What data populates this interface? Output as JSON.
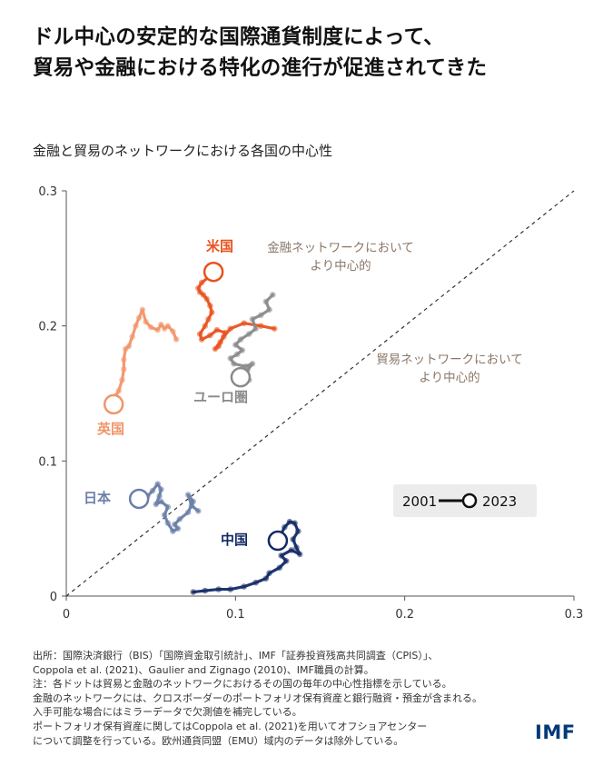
{
  "title_lines": [
    "ドル中心の安定的な国際通貨制度によって、",
    "貿易や金融における特化の進行が促進されてきた"
  ],
  "subtitle": "金融と貿易のネットワークにおける各国の中心性",
  "colors": {
    "us": "#e8521e",
    "euro": "#8a8a8a",
    "uk": "#f0956a",
    "japan": "#6a7ea8",
    "china": "#142a66",
    "diag_text": "#8a7768"
  },
  "chart_data": {
    "type": "scatter",
    "title": "金融と貿易のネットワークにおける各国の中心性",
    "xlabel": "",
    "ylabel": "",
    "xlim": [
      0,
      0.3
    ],
    "ylim": [
      0,
      0.3
    ],
    "x_ticks": [
      0,
      0.1,
      0.2,
      0.3
    ],
    "y_ticks": [
      0,
      0.1,
      0.2,
      0.3
    ],
    "x_tick_labels": [
      "0",
      "0.1",
      "0.2",
      "0.3"
    ],
    "y_tick_labels": [
      "0",
      "0.1",
      "0.2",
      "0.3"
    ],
    "grid": false,
    "diagonal_line": true,
    "legend": {
      "start": "2001",
      "end": "2023",
      "placement": "lower-right"
    },
    "annotations": [
      {
        "lines": [
          "金融ネットワークにおいて",
          "より中心的"
        ]
      },
      {
        "lines": [
          "貿易ネットワークにおいて",
          "より中心的"
        ]
      }
    ],
    "series": [
      {
        "name": "米国",
        "color_key": "us",
        "x": [
          0.123,
          0.115,
          0.105,
          0.097,
          0.093,
          0.09,
          0.088,
          0.091,
          0.094,
          0.089,
          0.085,
          0.08,
          0.079,
          0.082,
          0.084,
          0.086,
          0.085,
          0.083,
          0.081,
          0.079,
          0.078,
          0.08,
          0.084,
          0.087
        ],
        "y": [
          0.198,
          0.2,
          0.202,
          0.198,
          0.192,
          0.185,
          0.183,
          0.188,
          0.195,
          0.197,
          0.193,
          0.19,
          0.194,
          0.2,
          0.205,
          0.21,
          0.215,
          0.22,
          0.223,
          0.225,
          0.228,
          0.232,
          0.236,
          0.24
        ]
      },
      {
        "name": "ユーロ圏",
        "color_key": "euro",
        "x": [
          0.122,
          0.118,
          0.12,
          0.115,
          0.11,
          0.112,
          0.108,
          0.103,
          0.1,
          0.104,
          0.101,
          0.097,
          0.099,
          0.106,
          0.11,
          0.107,
          0.102,
          0.099,
          0.104,
          0.108,
          0.103
        ],
        "y": [
          0.223,
          0.218,
          0.212,
          0.208,
          0.205,
          0.198,
          0.194,
          0.19,
          0.186,
          0.182,
          0.179,
          0.176,
          0.172,
          0.17,
          0.172,
          0.167,
          0.164,
          0.162,
          0.158,
          0.16,
          0.162
        ]
      },
      {
        "name": "英国",
        "color_key": "uk",
        "x": [
          0.065,
          0.063,
          0.06,
          0.058,
          0.056,
          0.054,
          0.05,
          0.047,
          0.045,
          0.043,
          0.041,
          0.039,
          0.037,
          0.035,
          0.034,
          0.034,
          0.033,
          0.031,
          0.029,
          0.028
        ],
        "y": [
          0.19,
          0.196,
          0.2,
          0.198,
          0.201,
          0.197,
          0.199,
          0.203,
          0.212,
          0.206,
          0.2,
          0.192,
          0.185,
          0.183,
          0.175,
          0.168,
          0.16,
          0.152,
          0.148,
          0.142
        ]
      },
      {
        "name": "日本",
        "color_key": "japan",
        "x": [
          0.078,
          0.074,
          0.072,
          0.075,
          0.072,
          0.067,
          0.064,
          0.066,
          0.063,
          0.06,
          0.058,
          0.06,
          0.056,
          0.053,
          0.055,
          0.056,
          0.054,
          0.051,
          0.048,
          0.045,
          0.043
        ],
        "y": [
          0.063,
          0.067,
          0.075,
          0.07,
          0.062,
          0.057,
          0.053,
          0.05,
          0.048,
          0.054,
          0.06,
          0.066,
          0.07,
          0.068,
          0.074,
          0.079,
          0.083,
          0.078,
          0.074,
          0.072,
          0.072
        ]
      },
      {
        "name": "中国",
        "color_key": "china",
        "x": [
          0.075,
          0.082,
          0.09,
          0.097,
          0.105,
          0.112,
          0.118,
          0.12,
          0.126,
          0.13,
          0.127,
          0.133,
          0.138,
          0.136,
          0.134,
          0.137,
          0.135,
          0.132,
          0.129,
          0.125
        ],
        "y": [
          0.003,
          0.004,
          0.005,
          0.005,
          0.007,
          0.01,
          0.013,
          0.017,
          0.021,
          0.026,
          0.03,
          0.034,
          0.031,
          0.036,
          0.042,
          0.048,
          0.054,
          0.055,
          0.051,
          0.041
        ]
      }
    ],
    "series_labels": [
      {
        "text": "米国"
      },
      {
        "text": "ユーロ圏"
      },
      {
        "text": "英国"
      },
      {
        "text": "日本"
      },
      {
        "text": "中国"
      }
    ]
  },
  "source_lines": [
    "出所：国際決済銀行（BIS）「国際資金取引統計」、IMF「証券投資残高共同調査（CPIS）」、",
    "Coppola et al. (2021)、Gaulier and Zignago (2010)、IMF職員の計算。",
    "注：各ドットは貿易と金融のネットワークにおけるその国の毎年の中心性指標を示している。",
    "金融のネットワークには、クロスボーダーのポートフォリオ保有資産と銀行融資・預金が含まれる。",
    "入手可能な場合にはミラーデータで欠測値を補完している。",
    "ポートフォリオ保有資産に関してはCoppola et al. (2021)を用いてオフショアセンター",
    "について調整を行っている。欧州通貨同盟（EMU）域内のデータは除外している。"
  ],
  "logo": "IMF"
}
